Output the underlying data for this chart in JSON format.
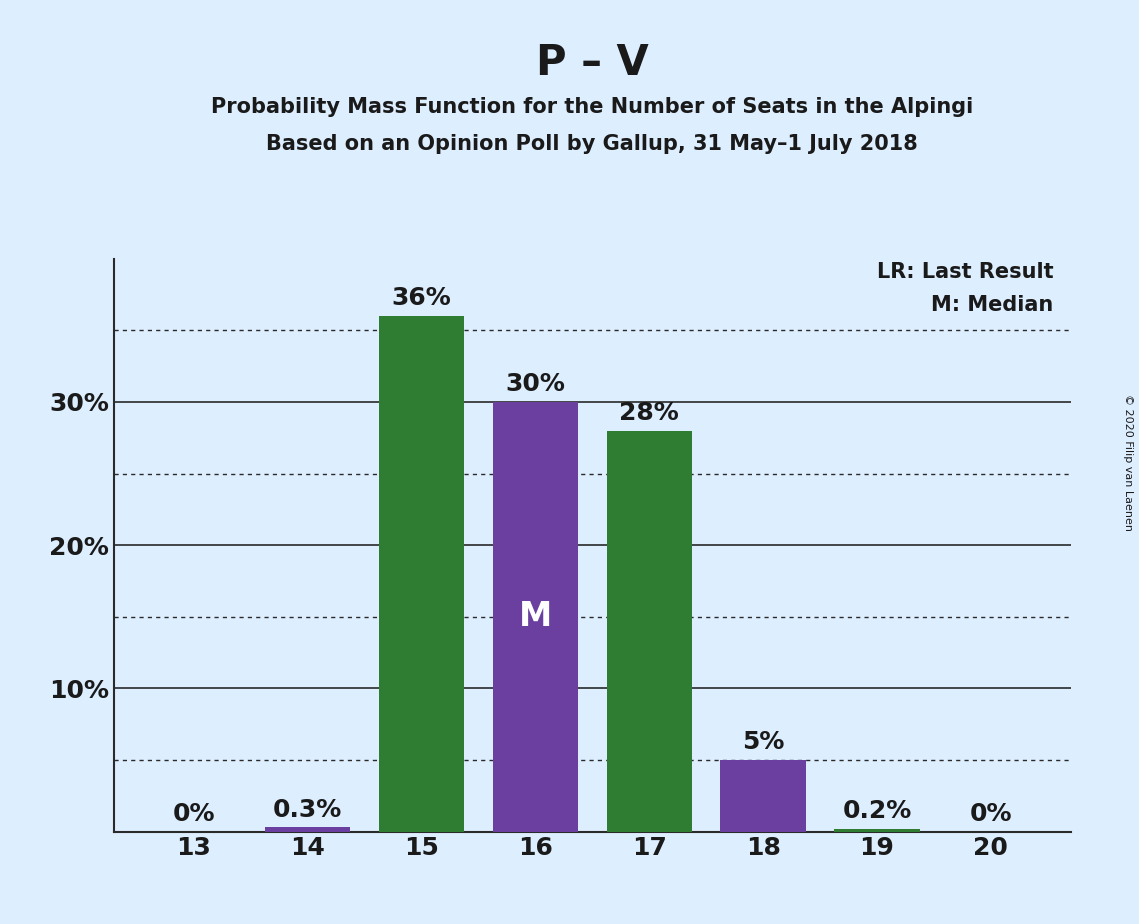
{
  "title": "P – V",
  "subtitle1": "Probability Mass Function for the Number of Seats in the Alpingi",
  "subtitle2": "Based on an Opinion Poll by Gallup, 31 May–1 July 2018",
  "copyright": "© 2020 Filip van Laenen",
  "categories": [
    13,
    14,
    15,
    16,
    17,
    18,
    19,
    20
  ],
  "values": [
    0.0,
    0.3,
    36.0,
    30.0,
    28.0,
    5.0,
    0.2,
    0.0
  ],
  "bar_colors": [
    "#2e7d32",
    "#6b3fa0",
    "#2e7d32",
    "#6b3fa0",
    "#2e7d32",
    "#6b3fa0",
    "#2e7d32",
    "#6b3fa0"
  ],
  "background_color": "#ddeeff",
  "ylim": [
    0,
    40
  ],
  "yticks": [
    0,
    10,
    20,
    30
  ],
  "dotted_lines": [
    5,
    15,
    25,
    35
  ],
  "median_bar": 16,
  "lr_bar": 17,
  "lr_color": "#2e7d32",
  "legend_lr": "LR: Last Result",
  "legend_m": "M: Median",
  "title_fontsize": 30,
  "subtitle_fontsize": 15,
  "bar_label_fontsize": 18,
  "axis_label_fontsize": 18,
  "legend_fontsize": 15,
  "bar_width": 0.75
}
